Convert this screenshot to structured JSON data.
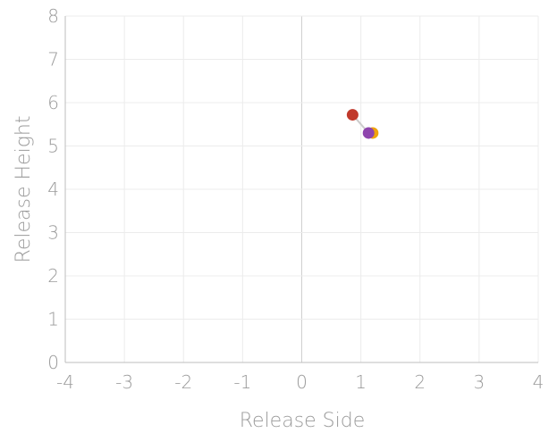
{
  "chart_data": {
    "type": "scatter",
    "title": "",
    "xlabel": "Release Side",
    "ylabel": "Release Height",
    "xlim": [
      -4,
      4
    ],
    "ylim": [
      0,
      8
    ],
    "x_ticks": [
      "-4",
      "-3",
      "-2",
      "-1",
      "0",
      "1",
      "2",
      "3",
      "4"
    ],
    "y_ticks": [
      "0",
      "1",
      "2",
      "3",
      "4",
      "5",
      "6",
      "7",
      "8"
    ],
    "grid": true,
    "legend": "none",
    "series": [
      {
        "color": "#f0a30a",
        "points": [
          {
            "x": 1.2,
            "y": 5.3
          }
        ]
      },
      {
        "color": "#8e44ad",
        "points": [
          {
            "x": 1.13,
            "y": 5.3
          }
        ]
      },
      {
        "color": "#c0392b",
        "points": [
          {
            "x": 0.86,
            "y": 5.72
          }
        ]
      }
    ],
    "connector_color": "#cccccc"
  }
}
